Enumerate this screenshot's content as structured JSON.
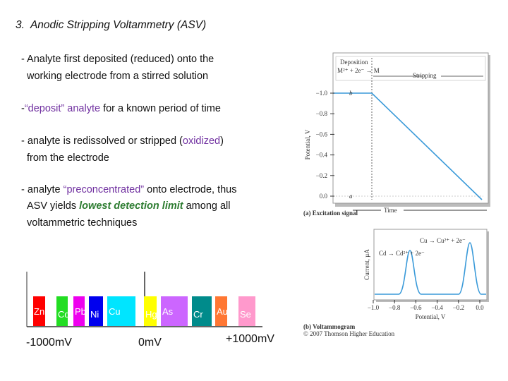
{
  "title": "3.  Anodic Stripping Voltammetry (ASV)",
  "bullets": [
    [
      [
        {
          "text": "- Analyte first deposited (reduced) onto the",
          "emphasis": "none"
        }
      ],
      [
        {
          "text": "working electrode from a stirred solution",
          "emphasis": "none"
        }
      ]
    ],
    [
      [
        {
          "text": "-",
          "emphasis": "none"
        },
        {
          "text": "“deposit” analyte",
          "emphasis": "purple"
        },
        {
          "text": " for a known period of time",
          "emphasis": "none"
        }
      ]
    ],
    [
      [
        {
          "text": "- analyte is redissolved or stripped (",
          "emphasis": "none"
        },
        {
          "text": "oxidized",
          "emphasis": "purple"
        },
        {
          "text": ")",
          "emphasis": "none"
        }
      ],
      [
        {
          "text": "from the electrode",
          "emphasis": "none"
        }
      ]
    ],
    [
      [
        {
          "text": "- analyte ",
          "emphasis": "none"
        },
        {
          "text": "“preconcentrated”",
          "emphasis": "purple"
        },
        {
          "text": " onto electrode, thus",
          "emphasis": "none"
        }
      ],
      [
        {
          "text": "ASV yields ",
          "emphasis": "none"
        },
        {
          "text": "lowest detection limit",
          "emphasis": "green"
        },
        {
          "text": " among all",
          "emphasis": "none"
        }
      ],
      [
        {
          "text": "voltammetric techniques",
          "emphasis": "none"
        }
      ]
    ]
  ],
  "scale": {
    "elements": [
      {
        "symbol": "Zn",
        "color": "#ff0000"
      },
      {
        "symbol": "Cd",
        "color": "#22dd22"
      },
      {
        "symbol": "Pb",
        "color": "#ee00ee"
      },
      {
        "symbol": "Ni",
        "color": "#0000ee"
      },
      {
        "symbol": "Cu",
        "color": "#00e5ff"
      },
      {
        "symbol": "Hg",
        "color": "#ffff00"
      },
      {
        "symbol": "As",
        "color": "#cc66ff"
      },
      {
        "symbol": "Cr",
        "color": "#008b8b"
      },
      {
        "symbol": "Au",
        "color": "#ff7733"
      },
      {
        "symbol": "Se",
        "color": "#ff99cc"
      }
    ],
    "labels": [
      "-1000mV",
      "0mV",
      "+1000mV"
    ]
  },
  "figure": {
    "excitation": {
      "legend_deposition": "Deposition",
      "legend_reaction": "M²⁺ + 2e⁻ → M",
      "legend_stripping": "Stripping",
      "yticks": [
        "−1.0",
        "−0.8",
        "−0.6",
        "−0.4",
        "−0.2",
        "0.0"
      ],
      "ylabel": "Potential, V",
      "xlabel": "Time",
      "point_b": "b",
      "point_a": "a",
      "caption": "(a) Excitation signal"
    },
    "voltammogram": {
      "ylabel": "Current, µA",
      "cu_label": "Cu → Cu²⁺ + 2e⁻",
      "cd_label": "Cd → Cd²⁺ + 2e⁻",
      "xticks": [
        "−1.0",
        "−0.8",
        "−0.6",
        "−0.4",
        "−0.2",
        "0.0"
      ],
      "xlabel": "Potential, V",
      "caption": "(b) Voltammogram",
      "copyright": "© 2007 Thomson Higher Education"
    }
  }
}
